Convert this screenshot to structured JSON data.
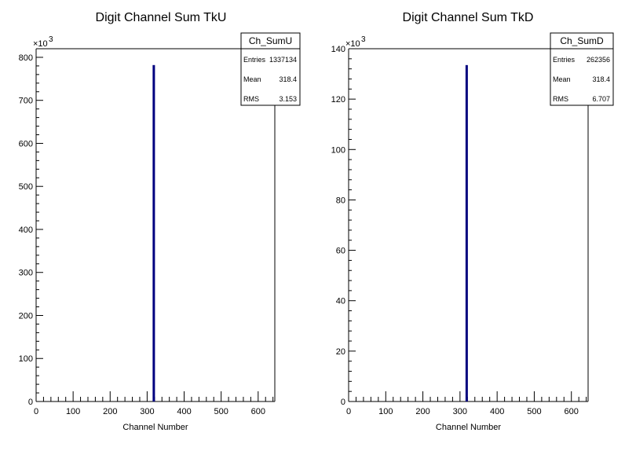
{
  "chart_data": [
    {
      "type": "bar",
      "title": "Digit Channel Sum TkU",
      "xlabel": "Channel Number",
      "ylabel": "",
      "xlim": [
        0,
        645
      ],
      "ylim": [
        0,
        820
      ],
      "y_multiplier": "×10",
      "y_exponent": "3",
      "xticks": [
        "0",
        "100",
        "200",
        "300",
        "400",
        "500",
        "600"
      ],
      "yticks": [
        "0",
        "100",
        "200",
        "300",
        "400",
        "500",
        "600",
        "700",
        "800"
      ],
      "bars": [
        {
          "x": 318,
          "value": 782
        }
      ],
      "stats": {
        "name": "Ch_SumU",
        "rows": [
          {
            "label": "Entries",
            "value": "1337134"
          },
          {
            "label": "Mean",
            "value": "318.4"
          },
          {
            "label": "RMS",
            "value": "3.153"
          }
        ]
      },
      "bar_color": "#00007f"
    },
    {
      "type": "bar",
      "title": "Digit Channel Sum TkD",
      "xlabel": "Channel Number",
      "ylabel": "",
      "xlim": [
        0,
        645
      ],
      "ylim": [
        0,
        140
      ],
      "y_multiplier": "×10",
      "y_exponent": "3",
      "xticks": [
        "0",
        "100",
        "200",
        "300",
        "400",
        "500",
        "600"
      ],
      "yticks": [
        "0",
        "20",
        "40",
        "60",
        "80",
        "100",
        "120",
        "140"
      ],
      "bars": [
        {
          "x": 318,
          "value": 133.5
        }
      ],
      "stats": {
        "name": "Ch_SumD",
        "rows": [
          {
            "label": "Entries",
            "value": "262356"
          },
          {
            "label": "Mean",
            "value": "318.4"
          },
          {
            "label": "RMS",
            "value": "6.707"
          }
        ]
      },
      "bar_color": "#00007f"
    }
  ]
}
